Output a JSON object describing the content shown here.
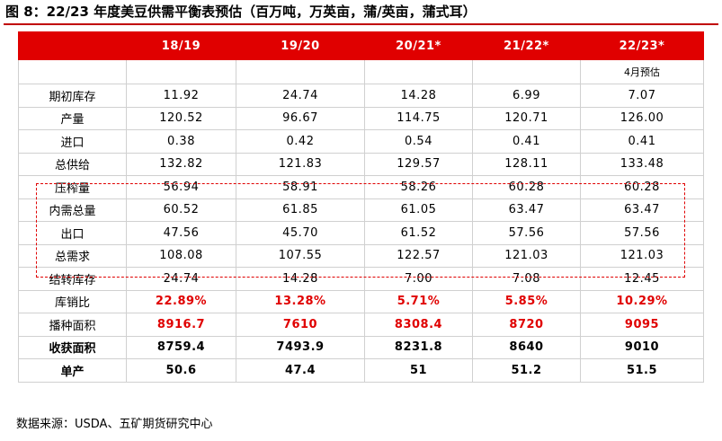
{
  "header": {
    "title": "图 8：22/23 年度美豆供需平衡表预估（百万吨，万英亩，蒲/英亩，蒲式耳）"
  },
  "table": {
    "columns": [
      "18/19",
      "19/20",
      "20/21*",
      "21/22*",
      "22/23*"
    ],
    "note": "4月预估",
    "rows": [
      [
        "期初库存",
        "11.92",
        "24.74",
        "14.28",
        "6.99",
        "7.07"
      ],
      [
        "产量",
        "120.52",
        "96.67",
        "114.75",
        "120.71",
        "126.00"
      ],
      [
        "进口",
        "0.38",
        "0.42",
        "0.54",
        "0.41",
        "0.41"
      ],
      [
        "总供给",
        "132.82",
        "121.83",
        "129.57",
        "128.11",
        "133.48"
      ],
      [
        "压榨量",
        "56.94",
        "58.91",
        "58.26",
        "60.28",
        "60.28"
      ],
      [
        "内需总量",
        "60.52",
        "61.85",
        "61.05",
        "63.47",
        "63.47"
      ],
      [
        "出口",
        "47.56",
        "45.70",
        "61.52",
        "57.56",
        "57.56"
      ],
      [
        "总需求",
        "108.08",
        "107.55",
        "122.57",
        "121.03",
        "121.03"
      ],
      [
        "结转库存",
        "24.74",
        "14.28",
        "7.00",
        "7.08",
        "12.45"
      ],
      [
        "库销比",
        "22.89%",
        "13.28%",
        "5.71%",
        "5.85%",
        "10.29%"
      ],
      [
        "播种面积",
        "8916.7",
        "7610",
        "8308.4",
        "8720",
        "9095"
      ],
      [
        "收获面积",
        "8759.4",
        "7493.9",
        "8231.8",
        "8640",
        "9010"
      ],
      [
        "单产",
        "50.6",
        "47.4",
        "51",
        "51.2",
        "51.5"
      ]
    ]
  },
  "footer": {
    "source": "数据来源：USDA、五矿期货研究中心"
  }
}
